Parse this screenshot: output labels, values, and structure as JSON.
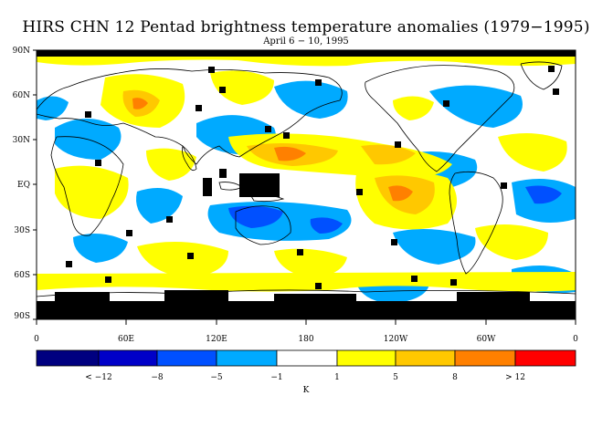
{
  "title": "HIRS CHN 12 Pentad brightness temperature anomalies (1979−1995)",
  "subtitle": "April 6 − 10, 1995",
  "map": {
    "lat_ticks": [
      "90N",
      "60N",
      "30N",
      "EQ",
      "30S",
      "60S",
      "90S"
    ],
    "lon_ticks": [
      "0",
      "60E",
      "120E",
      "180",
      "120W",
      "60W",
      "0"
    ]
  },
  "legend": {
    "unit": "K",
    "colors": [
      "#000080",
      "#0000c8",
      "#0050ff",
      "#00aaff",
      "#ffffff",
      "#ffff00",
      "#ffc800",
      "#ff8000",
      "#ff0000"
    ],
    "labels": [
      "< −12",
      "−8",
      "−5",
      "−1",
      "1",
      "5",
      "8",
      "> 12"
    ]
  }
}
